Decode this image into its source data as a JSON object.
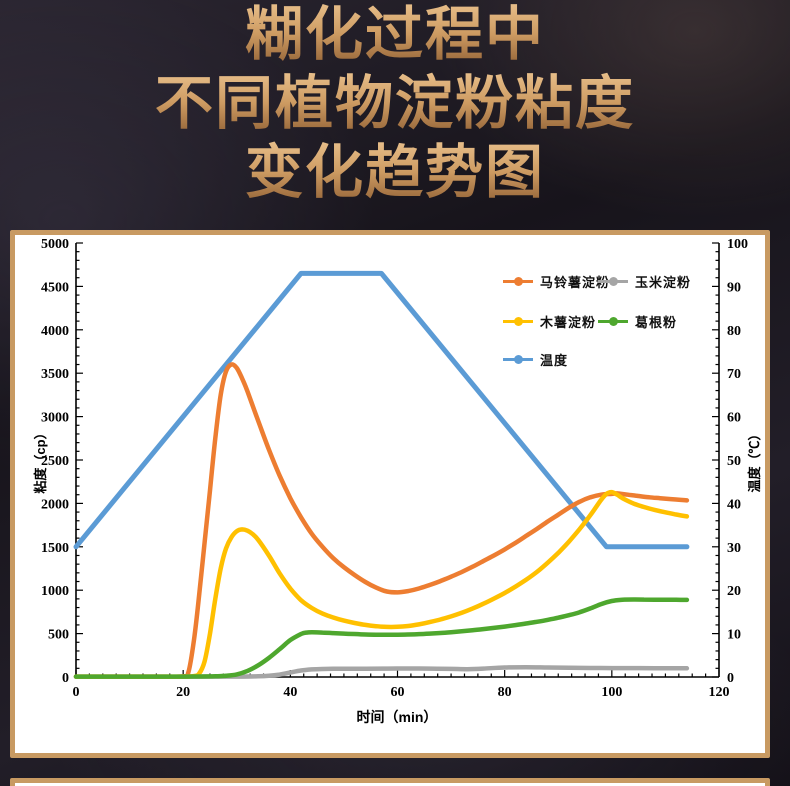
{
  "page": {
    "title_lines": [
      "糊化过程中",
      "不同植物淀粉粘度",
      "变化趋势图"
    ]
  },
  "colors": {
    "card_border": "#C89A62",
    "axis": "#000000",
    "title_gradient_top": "#EAC28E",
    "title_gradient_bottom": "#8E5E33"
  },
  "chart_data": {
    "type": "line",
    "xlabel": "时间（min）",
    "ylabel_left": "粘度（cp）",
    "ylabel_right": "温度（℃）",
    "x_axis": {
      "min": 0,
      "max": 120,
      "step": 20,
      "minor": 2.5
    },
    "left_axis": {
      "min": 0,
      "max": 5000,
      "step": 500,
      "minor": 100
    },
    "right_axis": {
      "min": 0,
      "max": 100,
      "step": 10,
      "minor": 2
    },
    "grid": false,
    "legend_position": "top-right-inside",
    "legend": [
      {
        "key": "potato-starch",
        "label": "马铃薯淀粉",
        "color": "#ED7D31"
      },
      {
        "key": "corn-starch",
        "label": "玉米淀粉",
        "color": "#A5A5A5"
      },
      {
        "key": "cassava-starch",
        "label": "木薯淀粉",
        "color": "#FFC000"
      },
      {
        "key": "kudzu-powder",
        "label": "葛根粉",
        "color": "#4EA72E"
      },
      {
        "key": "temperature",
        "label": "温度",
        "color": "#5B9BD5"
      }
    ],
    "series": [
      {
        "key": "temperature",
        "name": "温度",
        "axis": "right",
        "color": "#5B9BD5",
        "width": 5,
        "smooth": false,
        "points": [
          [
            0,
            30
          ],
          [
            42,
            93
          ],
          [
            57,
            93
          ],
          [
            99,
            30
          ],
          [
            114,
            30
          ]
        ]
      },
      {
        "key": "potato-starch",
        "name": "马铃薯淀粉",
        "axis": "left",
        "color": "#ED7D31",
        "width": 4.5,
        "smooth": true,
        "points": [
          [
            0,
            5
          ],
          [
            5,
            5
          ],
          [
            10,
            5
          ],
          [
            15,
            5
          ],
          [
            20,
            8
          ],
          [
            21,
            60
          ],
          [
            22,
            420
          ],
          [
            23,
            950
          ],
          [
            24,
            1550
          ],
          [
            25,
            2150
          ],
          [
            26,
            2750
          ],
          [
            27,
            3250
          ],
          [
            28,
            3520
          ],
          [
            29,
            3600
          ],
          [
            30,
            3560
          ],
          [
            31,
            3440
          ],
          [
            32,
            3290
          ],
          [
            34,
            2950
          ],
          [
            36,
            2620
          ],
          [
            38,
            2320
          ],
          [
            40,
            2060
          ],
          [
            42,
            1840
          ],
          [
            44,
            1650
          ],
          [
            46,
            1500
          ],
          [
            48,
            1370
          ],
          [
            50,
            1265
          ],
          [
            52,
            1175
          ],
          [
            54,
            1095
          ],
          [
            56,
            1030
          ],
          [
            58,
            985
          ],
          [
            60,
            975
          ],
          [
            62,
            990
          ],
          [
            64,
            1020
          ],
          [
            66,
            1060
          ],
          [
            68,
            1105
          ],
          [
            70,
            1155
          ],
          [
            72,
            1210
          ],
          [
            74,
            1270
          ],
          [
            76,
            1335
          ],
          [
            78,
            1400
          ],
          [
            80,
            1470
          ],
          [
            82,
            1545
          ],
          [
            84,
            1625
          ],
          [
            86,
            1705
          ],
          [
            88,
            1790
          ],
          [
            90,
            1870
          ],
          [
            92,
            1950
          ],
          [
            94,
            2020
          ],
          [
            96,
            2070
          ],
          [
            98,
            2100
          ],
          [
            100,
            2110
          ],
          [
            101,
            2115
          ],
          [
            103,
            2100
          ],
          [
            105,
            2085
          ],
          [
            107,
            2070
          ],
          [
            109,
            2060
          ],
          [
            111,
            2050
          ],
          [
            114,
            2035
          ]
        ]
      },
      {
        "key": "corn-starch",
        "name": "玉米淀粉",
        "axis": "left",
        "color": "#A5A5A5",
        "width": 4.5,
        "smooth": true,
        "points": [
          [
            0,
            4
          ],
          [
            10,
            4
          ],
          [
            20,
            4
          ],
          [
            30,
            5
          ],
          [
            34,
            8
          ],
          [
            36,
            14
          ],
          [
            38,
            28
          ],
          [
            40,
            52
          ],
          [
            42,
            75
          ],
          [
            44,
            87
          ],
          [
            46,
            92
          ],
          [
            48,
            94
          ],
          [
            50,
            95
          ],
          [
            54,
            96
          ],
          [
            58,
            97
          ],
          [
            62,
            98
          ],
          [
            66,
            97
          ],
          [
            70,
            93
          ],
          [
            73,
            90
          ],
          [
            76,
            97
          ],
          [
            80,
            110
          ],
          [
            84,
            113
          ],
          [
            88,
            110
          ],
          [
            92,
            106
          ],
          [
            96,
            104
          ],
          [
            100,
            103
          ],
          [
            104,
            102
          ],
          [
            108,
            101
          ],
          [
            114,
            100
          ]
        ]
      },
      {
        "key": "cassava-starch",
        "name": "木薯淀粉",
        "axis": "left",
        "color": "#FFC000",
        "width": 4.5,
        "smooth": true,
        "points": [
          [
            0,
            5
          ],
          [
            5,
            5
          ],
          [
            10,
            5
          ],
          [
            15,
            5
          ],
          [
            20,
            5
          ],
          [
            22,
            10
          ],
          [
            23,
            40
          ],
          [
            24,
            180
          ],
          [
            25,
            500
          ],
          [
            26,
            900
          ],
          [
            27,
            1250
          ],
          [
            28,
            1480
          ],
          [
            29,
            1610
          ],
          [
            30,
            1680
          ],
          [
            31,
            1700
          ],
          [
            32,
            1685
          ],
          [
            33,
            1645
          ],
          [
            34,
            1580
          ],
          [
            36,
            1400
          ],
          [
            38,
            1195
          ],
          [
            40,
            1020
          ],
          [
            42,
            885
          ],
          [
            44,
            795
          ],
          [
            46,
            730
          ],
          [
            48,
            685
          ],
          [
            50,
            650
          ],
          [
            52,
            622
          ],
          [
            54,
            600
          ],
          [
            56,
            585
          ],
          [
            58,
            577
          ],
          [
            60,
            578
          ],
          [
            62,
            588
          ],
          [
            64,
            606
          ],
          [
            66,
            632
          ],
          [
            68,
            662
          ],
          [
            70,
            698
          ],
          [
            72,
            740
          ],
          [
            74,
            788
          ],
          [
            76,
            843
          ],
          [
            78,
            903
          ],
          [
            80,
            968
          ],
          [
            82,
            1040
          ],
          [
            84,
            1120
          ],
          [
            86,
            1210
          ],
          [
            88,
            1315
          ],
          [
            90,
            1430
          ],
          [
            92,
            1560
          ],
          [
            94,
            1705
          ],
          [
            96,
            1865
          ],
          [
            98,
            2040
          ],
          [
            99,
            2110
          ],
          [
            100,
            2130
          ],
          [
            101,
            2100
          ],
          [
            102,
            2060
          ],
          [
            104,
            2000
          ],
          [
            106,
            1958
          ],
          [
            108,
            1925
          ],
          [
            110,
            1897
          ],
          [
            112,
            1872
          ],
          [
            114,
            1850
          ]
        ]
      },
      {
        "key": "kudzu-powder",
        "name": "葛根粉",
        "axis": "left",
        "color": "#4EA72E",
        "width": 4.5,
        "smooth": true,
        "points": [
          [
            0,
            5
          ],
          [
            10,
            5
          ],
          [
            20,
            5
          ],
          [
            26,
            8
          ],
          [
            28,
            15
          ],
          [
            30,
            30
          ],
          [
            32,
            70
          ],
          [
            34,
            135
          ],
          [
            36,
            220
          ],
          [
            38,
            320
          ],
          [
            40,
            425
          ],
          [
            42,
            495
          ],
          [
            43,
            512
          ],
          [
            44,
            515
          ],
          [
            46,
            512
          ],
          [
            48,
            506
          ],
          [
            50,
            500
          ],
          [
            52,
            495
          ],
          [
            54,
            490
          ],
          [
            56,
            487
          ],
          [
            58,
            486
          ],
          [
            60,
            487
          ],
          [
            62,
            490
          ],
          [
            64,
            494
          ],
          [
            66,
            500
          ],
          [
            68,
            507
          ],
          [
            70,
            516
          ],
          [
            72,
            527
          ],
          [
            74,
            539
          ],
          [
            76,
            552
          ],
          [
            78,
            566
          ],
          [
            80,
            581
          ],
          [
            82,
            598
          ],
          [
            84,
            616
          ],
          [
            86,
            636
          ],
          [
            88,
            658
          ],
          [
            90,
            683
          ],
          [
            92,
            712
          ],
          [
            94,
            746
          ],
          [
            96,
            790
          ],
          [
            98,
            840
          ],
          [
            100,
            876
          ],
          [
            102,
            890
          ],
          [
            104,
            893
          ],
          [
            106,
            892
          ],
          [
            108,
            891
          ],
          [
            110,
            890
          ],
          [
            112,
            889
          ],
          [
            114,
            888
          ]
        ]
      }
    ]
  }
}
